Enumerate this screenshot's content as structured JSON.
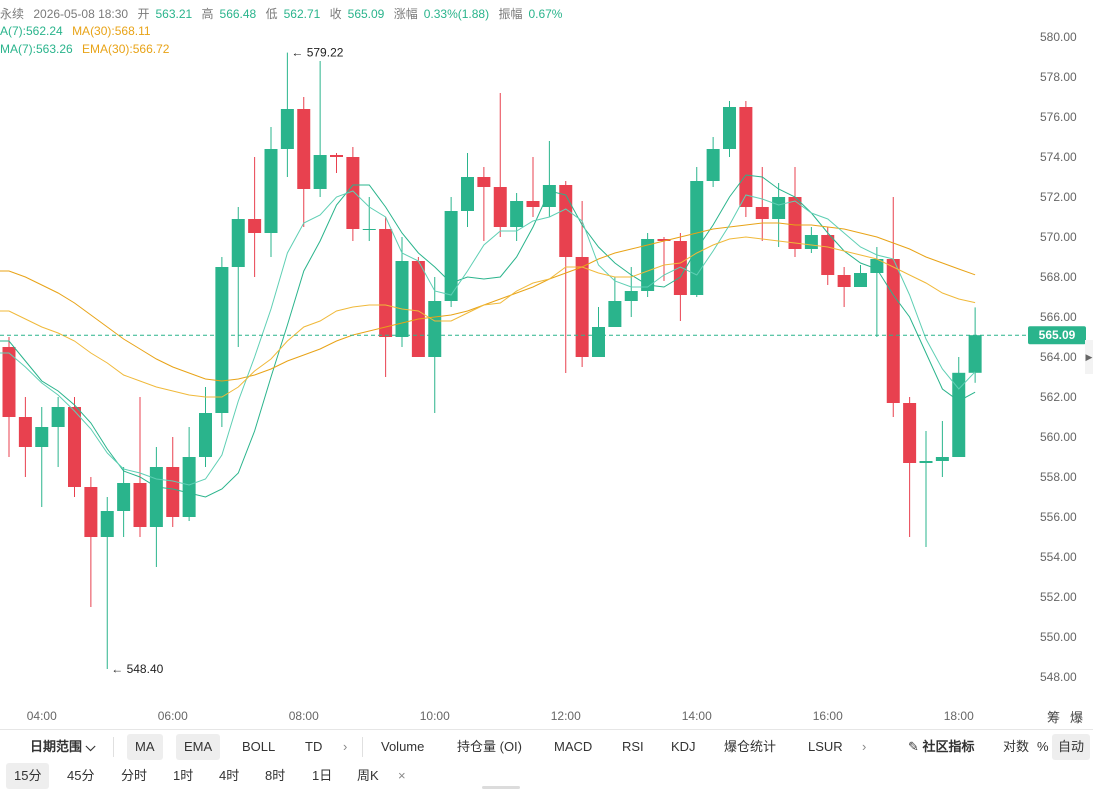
{
  "legend": {
    "line1": [
      "永续",
      "2026-05-08 18:30",
      "开",
      "563.21",
      "高",
      "566.48",
      "低",
      "562.71",
      "收",
      "565.09",
      "涨幅",
      "0.33%(1.88)",
      "振幅",
      "0.67%"
    ],
    "ma_line": {
      "ma7": "A(7):562.24",
      "ma30": "MA(30):568.11"
    },
    "ema_line": {
      "ema7": "MA(7):563.26",
      "ema30": "EMA(30):566.72"
    }
  },
  "colors": {
    "up": "#2ab48c",
    "down": "#e8414f",
    "ma7": "#2ab48c",
    "ma30": "#e8a317",
    "ema7": "#5fcfb4",
    "ema30": "#f0b93a",
    "price_tag": "#2ab48c"
  },
  "chart_data": {
    "type": "candlestick",
    "ylim": [
      547,
      581
    ],
    "yticks": [
      "548.00",
      "550.00",
      "552.00",
      "554.00",
      "556.00",
      "558.00",
      "560.00",
      "562.00",
      "564.00",
      "566.00",
      "568.00",
      "570.00",
      "572.00",
      "574.00",
      "576.00",
      "578.00",
      "580.00"
    ],
    "xticks": [
      "04:00",
      "06:00",
      "08:00",
      "10:00",
      "12:00",
      "14:00",
      "16:00",
      "18:00"
    ],
    "time_start": "03:30",
    "interval_minutes": 15,
    "candles": [
      [
        564.5,
        561.0,
        565.0,
        559.0
      ],
      [
        561.0,
        559.5,
        562.0,
        558.0
      ],
      [
        559.5,
        560.5,
        561.5,
        556.5
      ],
      [
        560.5,
        561.5,
        562.0,
        558.5
      ],
      [
        561.5,
        557.5,
        562.0,
        557.0
      ],
      [
        557.5,
        555.0,
        558.0,
        551.5
      ],
      [
        555.0,
        556.3,
        557.0,
        548.4
      ],
      [
        556.3,
        557.7,
        558.5,
        555.0
      ],
      [
        557.7,
        555.5,
        562.0,
        555.0
      ],
      [
        555.5,
        558.5,
        559.5,
        553.5
      ],
      [
        558.5,
        556.0,
        560.0,
        555.5
      ],
      [
        556.0,
        559.0,
        560.5,
        555.8
      ],
      [
        559.0,
        561.2,
        562.5,
        558.5
      ],
      [
        561.2,
        568.5,
        569.0,
        560.5
      ],
      [
        568.5,
        570.9,
        571.5,
        564.5
      ],
      [
        570.9,
        570.2,
        574.0,
        568.0
      ],
      [
        570.2,
        574.4,
        575.5,
        569.0
      ],
      [
        574.4,
        576.4,
        579.22,
        573.0
      ],
      [
        576.4,
        572.4,
        577.0,
        570.5
      ],
      [
        572.4,
        574.1,
        578.8,
        572.0
      ],
      [
        574.1,
        574.0,
        574.2,
        573.2
      ],
      [
        574.0,
        570.4,
        574.5,
        569.8
      ],
      [
        570.4,
        570.4,
        572.0,
        569.8
      ],
      [
        570.4,
        565.0,
        571.0,
        563.0
      ],
      [
        565.0,
        568.8,
        570.0,
        564.5
      ],
      [
        568.8,
        564.0,
        569.0,
        564.5
      ],
      [
        564.0,
        566.8,
        568.0,
        561.2
      ],
      [
        566.8,
        571.3,
        572.0,
        566.5
      ],
      [
        571.3,
        573.0,
        574.2,
        570.5
      ],
      [
        573.0,
        572.5,
        573.5,
        569.8
      ],
      [
        572.5,
        570.5,
        577.2,
        570.0
      ],
      [
        570.5,
        571.8,
        572.2,
        569.8
      ],
      [
        571.8,
        571.5,
        574.0,
        571.0
      ],
      [
        571.5,
        572.6,
        574.8,
        571.0
      ],
      [
        572.6,
        569.0,
        572.8,
        563.2
      ],
      [
        569.0,
        564.0,
        571.8,
        563.5
      ],
      [
        564.0,
        565.5,
        566.5,
        564.5
      ],
      [
        565.5,
        566.8,
        568.0,
        565.5
      ],
      [
        566.8,
        567.3,
        568.5,
        566.0
      ],
      [
        567.3,
        569.9,
        570.2,
        567.0
      ],
      [
        569.9,
        569.8,
        570.0,
        567.8
      ],
      [
        569.8,
        567.1,
        570.2,
        565.8
      ],
      [
        567.1,
        572.8,
        573.5,
        567.0
      ],
      [
        572.8,
        574.4,
        575.0,
        572.5
      ],
      [
        574.4,
        576.5,
        576.8,
        574.0
      ],
      [
        576.5,
        571.5,
        576.8,
        571.0
      ],
      [
        571.5,
        570.9,
        573.5,
        569.8
      ],
      [
        570.9,
        572.0,
        572.7,
        569.5
      ],
      [
        572.0,
        569.4,
        573.5,
        569.0
      ],
      [
        569.4,
        570.1,
        570.5,
        569.2
      ],
      [
        570.1,
        568.1,
        570.5,
        567.6
      ],
      [
        568.1,
        567.5,
        568.5,
        566.5
      ],
      [
        567.5,
        568.2,
        568.6,
        567.5
      ],
      [
        568.2,
        568.9,
        569.5,
        565.0
      ],
      [
        568.9,
        561.7,
        572.0,
        561.0
      ],
      [
        561.7,
        558.7,
        562.0,
        555.0
      ],
      [
        558.7,
        558.8,
        560.3,
        554.5
      ],
      [
        558.8,
        559.0,
        560.8,
        558.0
      ],
      [
        559.0,
        563.21,
        564.0,
        562.71
      ],
      [
        563.21,
        565.09,
        566.48,
        562.71
      ]
    ],
    "series": [
      {
        "name": "MA(7)",
        "values": [
          564.8,
          563.8,
          562.8,
          562.3,
          561.6,
          560.7,
          559.4,
          558.3,
          558.0,
          557.5,
          557.4,
          557.2,
          557.0,
          557.4,
          558.2,
          560.3,
          563.0,
          565.6,
          568.3,
          569.8,
          571.6,
          572.6,
          572.6,
          571.5,
          570.2,
          569.2,
          568.5,
          567.7,
          568.0,
          567.9,
          568.0,
          569.0,
          570.5,
          572.3,
          572.1,
          570.6,
          569.5,
          568.7,
          568.1,
          567.6,
          567.5,
          568.0,
          569.4,
          570.6,
          572.0,
          573.1,
          573.0,
          572.4,
          572.0,
          571.2,
          570.2,
          569.3,
          568.7,
          568.4,
          567.1,
          566.0,
          564.2,
          562.4,
          561.8,
          562.24
        ]
      },
      {
        "name": "MA(30)",
        "values": [
          568.3,
          568.0,
          567.6,
          567.2,
          566.7,
          566.1,
          565.5,
          564.9,
          564.4,
          563.9,
          563.5,
          563.2,
          562.9,
          562.8,
          562.9,
          563.1,
          563.4,
          563.8,
          564.1,
          564.4,
          564.8,
          565.1,
          565.3,
          565.5,
          565.7,
          565.9,
          566.0,
          566.1,
          566.3,
          566.6,
          566.9,
          567.2,
          567.5,
          567.9,
          568.2,
          568.5,
          568.9,
          569.2,
          569.4,
          569.6,
          569.8,
          570.0,
          570.2,
          570.4,
          570.5,
          570.6,
          570.7,
          570.7,
          570.6,
          570.6,
          570.5,
          570.4,
          570.2,
          570.0,
          569.7,
          569.4,
          569.0,
          568.7,
          568.4,
          568.11
        ]
      },
      {
        "name": "EMA(7)",
        "values": [
          564.2,
          563.5,
          562.7,
          562.1,
          561.3,
          560.4,
          559.2,
          558.4,
          558.2,
          557.9,
          557.8,
          557.6,
          557.9,
          559.1,
          561.8,
          564.0,
          566.4,
          569.2,
          570.7,
          571.1,
          572.0,
          572.3,
          571.5,
          571.0,
          569.2,
          568.8,
          567.3,
          567.1,
          568.3,
          569.6,
          570.3,
          570.3,
          570.8,
          571.0,
          571.4,
          570.8,
          568.6,
          567.8,
          567.5,
          567.5,
          568.1,
          568.5,
          568.1,
          569.3,
          570.6,
          572.1,
          571.9,
          571.6,
          571.8,
          571.2,
          570.9,
          570.2,
          569.5,
          569.1,
          568.9,
          567.1,
          564.9,
          563.4,
          562.4,
          563.26
        ]
      },
      {
        "name": "EMA(30)",
        "values": [
          566.3,
          565.9,
          565.5,
          565.2,
          564.8,
          564.2,
          563.7,
          563.1,
          562.8,
          562.5,
          562.3,
          562.1,
          562.0,
          562.0,
          562.5,
          563.3,
          563.9,
          564.8,
          565.5,
          565.8,
          566.3,
          566.5,
          566.6,
          566.6,
          566.4,
          566.3,
          565.8,
          565.8,
          566.2,
          566.6,
          566.7,
          567.3,
          567.7,
          567.9,
          568.5,
          568.5,
          568.2,
          568.0,
          568.0,
          568.3,
          568.6,
          568.7,
          569.2,
          569.6,
          569.9,
          570.0,
          569.9,
          569.8,
          569.7,
          569.6,
          569.5,
          569.3,
          569.1,
          568.9,
          568.5,
          568.1,
          567.7,
          567.2,
          566.9,
          566.72
        ]
      }
    ],
    "annotations": {
      "high": "579.22",
      "low": "548.40"
    },
    "last_price": "565.09"
  },
  "toolbar": {
    "date_range": "日期范围",
    "items": [
      "MA",
      "EMA",
      "BOLL",
      "TD",
      "Volume",
      "持仓量 (OI)",
      "MACD",
      "RSI",
      "KDJ",
      "爆仓统计",
      "LSUR"
    ],
    "community": "社区指标",
    "log_scale": "对数",
    "percent": "%",
    "auto": "自动",
    "corner_a": "筹",
    "corner_b": "爆"
  },
  "intervals": [
    "15分",
    "45分",
    "分时",
    "1时",
    "4时",
    "8时",
    "1日",
    "周K"
  ],
  "close_glyph": "×",
  "more_glyph": "›"
}
